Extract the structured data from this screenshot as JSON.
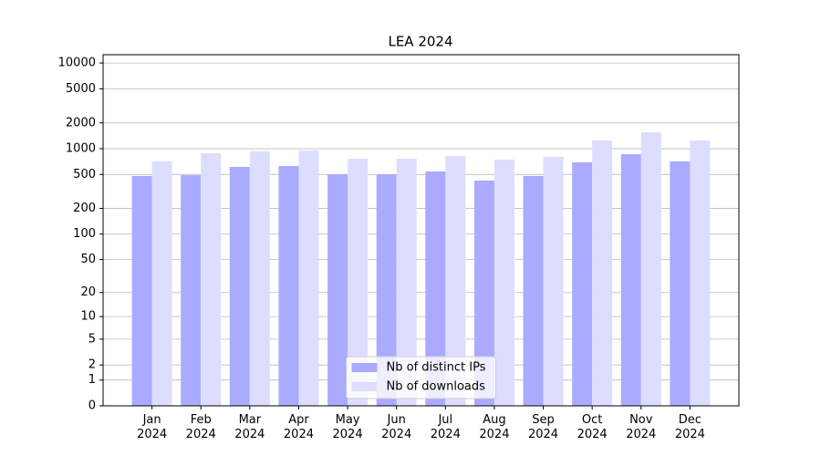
{
  "chart_data": {
    "type": "bar",
    "title": "LEA 2024",
    "categories": [
      "Jan 2024",
      "Feb 2024",
      "Mar 2024",
      "Apr 2024",
      "May 2024",
      "Jun 2024",
      "Jul 2024",
      "Aug 2024",
      "Sep 2024",
      "Oct 2024",
      "Nov 2024",
      "Dec 2024"
    ],
    "series": [
      {
        "name": "Nb of distinct IPs",
        "color": "#aaaaff",
        "values": [
          480,
          490,
          613,
          627,
          500,
          500,
          542,
          424,
          480,
          692,
          863,
          710
        ]
      },
      {
        "name": "Nb of downloads",
        "color": "#ddddff",
        "values": [
          710,
          885,
          930,
          950,
          763,
          763,
          822,
          745,
          805,
          1247,
          1554,
          1247
        ]
      }
    ],
    "yscale": "log1p",
    "ylim": [
      0,
      12500
    ],
    "yticks": [
      0,
      1,
      2,
      5,
      10,
      20,
      50,
      100,
      200,
      500,
      1000,
      2000,
      5000,
      10000
    ],
    "grid": true,
    "legend": "lower center"
  }
}
